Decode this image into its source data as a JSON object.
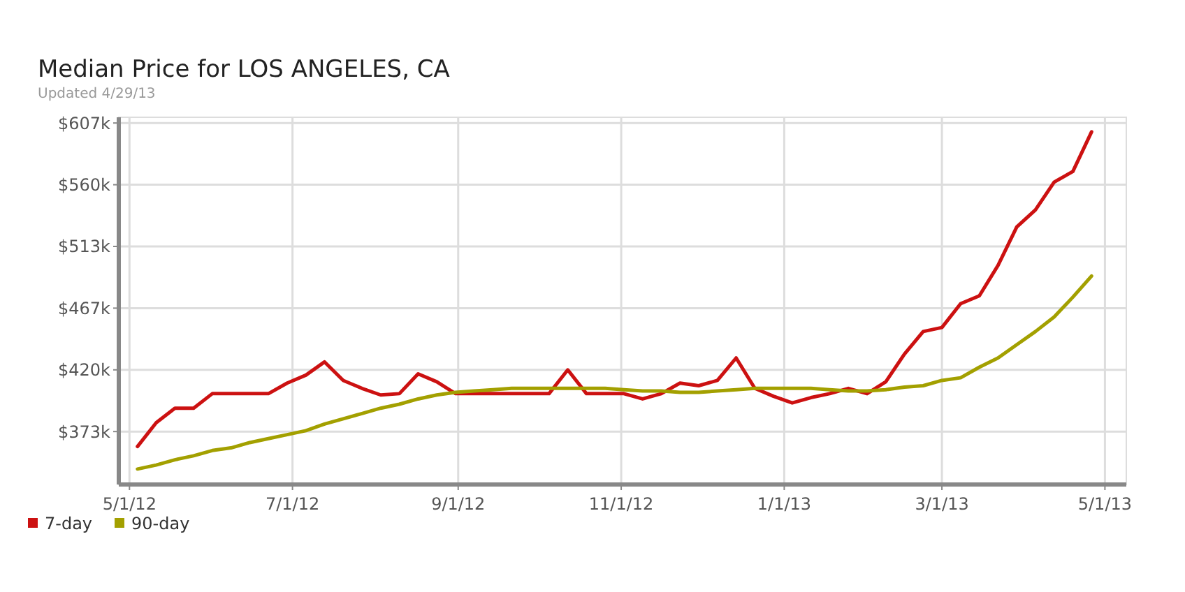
{
  "chart_data": {
    "type": "line",
    "title": "Median Price for LOS ANGELES, CA",
    "subtitle": "Updated 4/29/13",
    "x": [
      "2012-05-04",
      "2012-05-11",
      "2012-05-18",
      "2012-05-25",
      "2012-06-01",
      "2012-06-08",
      "2012-06-15",
      "2012-06-22",
      "2012-06-29",
      "2012-07-06",
      "2012-07-13",
      "2012-07-20",
      "2012-07-27",
      "2012-08-03",
      "2012-08-10",
      "2012-08-17",
      "2012-08-24",
      "2012-08-31",
      "2012-09-07",
      "2012-09-14",
      "2012-09-21",
      "2012-09-28",
      "2012-10-05",
      "2012-10-12",
      "2012-10-19",
      "2012-10-26",
      "2012-11-02",
      "2012-11-09",
      "2012-11-16",
      "2012-11-23",
      "2012-11-30",
      "2012-12-07",
      "2012-12-14",
      "2012-12-21",
      "2012-12-28",
      "2013-01-04",
      "2013-01-11",
      "2013-01-18",
      "2013-01-25",
      "2013-02-01",
      "2013-02-08",
      "2013-02-15",
      "2013-02-22",
      "2013-03-01",
      "2013-03-08",
      "2013-03-15",
      "2013-03-22",
      "2013-03-29",
      "2013-04-05",
      "2013-04-12",
      "2013-04-19",
      "2013-04-26"
    ],
    "series": [
      {
        "name": "7-day",
        "color": "#cc1111",
        "values": [
          362,
          380,
          391,
          391,
          402,
          402,
          402,
          402,
          410,
          416,
          426,
          412,
          406,
          401,
          402,
          417,
          411,
          402,
          402,
          402,
          402,
          402,
          402,
          420,
          402,
          402,
          402,
          398,
          402,
          410,
          408,
          412,
          429,
          406,
          400,
          395,
          399,
          402,
          406,
          402,
          411,
          432,
          449,
          452,
          470,
          476,
          499,
          528,
          541,
          562,
          570,
          600
        ]
      },
      {
        "name": "90-day",
        "color": "#a3a000",
        "values": [
          345,
          348,
          352,
          355,
          359,
          361,
          365,
          368,
          371,
          374,
          379,
          383,
          387,
          391,
          394,
          398,
          401,
          403,
          404,
          405,
          406,
          406,
          406,
          406,
          406,
          406,
          405,
          404,
          404,
          403,
          403,
          404,
          405,
          406,
          406,
          406,
          406,
          405,
          404,
          404,
          405,
          407,
          408,
          412,
          414,
          422,
          429,
          439,
          449,
          460,
          475,
          491
        ]
      }
    ],
    "xlim": [
      "2012-04-27",
      "2013-05-09"
    ],
    "xticks": [
      {
        "value": "2012-05-01",
        "label": "5/1/12"
      },
      {
        "value": "2012-07-01",
        "label": "7/1/12"
      },
      {
        "value": "2012-09-01",
        "label": "9/1/12"
      },
      {
        "value": "2012-11-01",
        "label": "11/1/12"
      },
      {
        "value": "2013-01-01",
        "label": "1/1/13"
      },
      {
        "value": "2013-03-01",
        "label": "3/1/13"
      },
      {
        "value": "2013-05-01",
        "label": "5/1/13"
      }
    ],
    "ylim": [
      333.3,
      611
    ],
    "yticks": [
      {
        "value": 373.33,
        "label": "$373k"
      },
      {
        "value": 420,
        "label": "$420k"
      },
      {
        "value": 466.67,
        "label": "$467k"
      },
      {
        "value": 513.33,
        "label": "$513k"
      },
      {
        "value": 560,
        "label": "$560k"
      },
      {
        "value": 606.67,
        "label": "$607k"
      }
    ],
    "grid": true,
    "legend": "bottom left",
    "marker": "none",
    "line_style": "solid"
  }
}
